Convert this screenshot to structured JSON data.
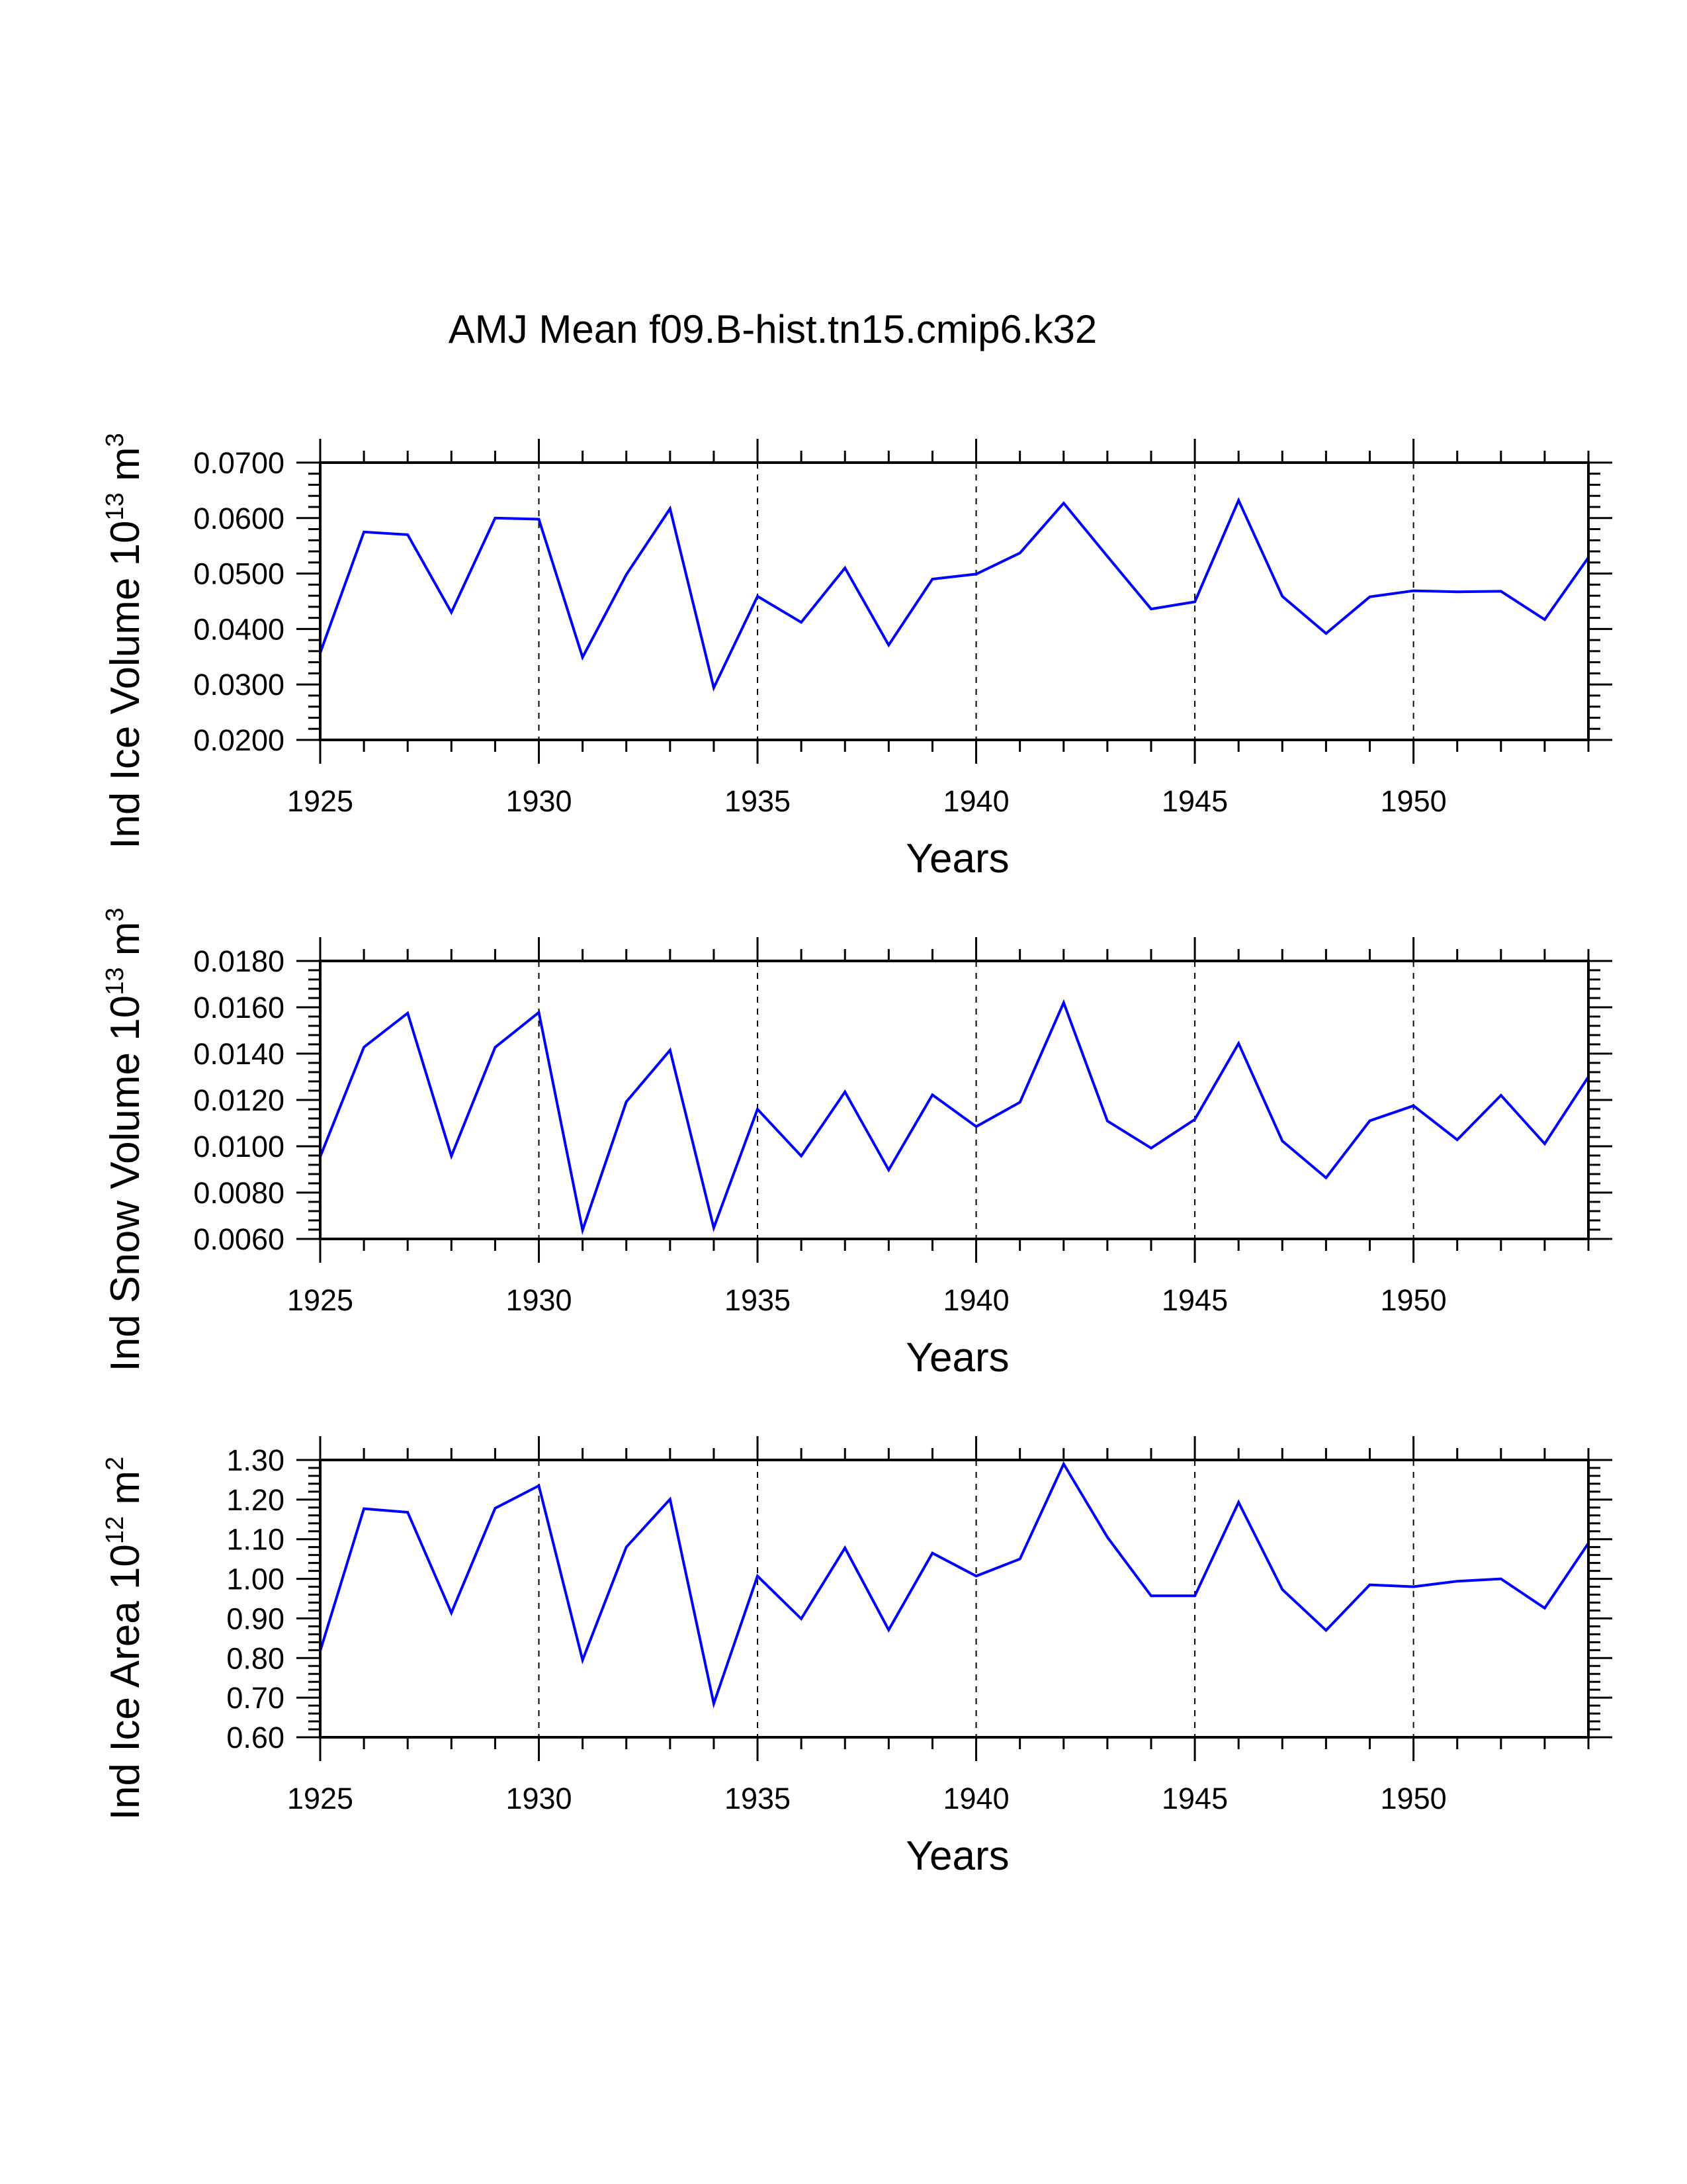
{
  "title": "AMJ Mean f09.B-hist.tn15.cmip6.k32",
  "colors": {
    "series": "#0000ff",
    "axis": "#000000",
    "background": "#ffffff"
  },
  "chart_data": [
    {
      "type": "line",
      "ylabel": "Ind Ice Volume 10^13 m^3",
      "ylabel_parts": {
        "base": "Ind Ice Volume 10",
        "exp1": "13",
        "unit": " m",
        "exp2": "3"
      },
      "xlabel": "Years",
      "xlim": [
        1925,
        1954
      ],
      "ylim": [
        0.02,
        0.07
      ],
      "xticks": [
        1925,
        1930,
        1935,
        1940,
        1945,
        1950
      ],
      "xtick_labels": [
        "1925",
        "1930",
        "1935",
        "1940",
        "1945",
        "1950"
      ],
      "yticks": [
        0.02,
        0.03,
        0.04,
        0.05,
        0.06,
        0.07
      ],
      "ytick_labels": [
        "0.0200",
        "0.0300",
        "0.0400",
        "0.0500",
        "0.0600",
        "0.0700"
      ],
      "grid": "dashed vertical at x ticks",
      "x": [
        1925,
        1926,
        1927,
        1928,
        1929,
        1930,
        1931,
        1932,
        1933,
        1934,
        1935,
        1936,
        1937,
        1938,
        1939,
        1940,
        1941,
        1942,
        1943,
        1944,
        1945,
        1946,
        1947,
        1948,
        1949,
        1950,
        1951,
        1952,
        1953,
        1954
      ],
      "values": [
        0.0357,
        0.0575,
        0.057,
        0.043,
        0.06,
        0.0598,
        0.0349,
        0.0498,
        0.0617,
        0.0294,
        0.0459,
        0.0412,
        0.051,
        0.0371,
        0.049,
        0.0499,
        0.0537,
        0.0627,
        0.0531,
        0.0436,
        0.0449,
        0.0632,
        0.0459,
        0.0392,
        0.0458,
        0.0469,
        0.0467,
        0.0468,
        0.0417,
        0.0529
      ]
    },
    {
      "type": "line",
      "ylabel": "Ind Snow Volume 10^13 m^3",
      "ylabel_parts": {
        "base": "Ind Snow Volume 10",
        "exp1": "13",
        "unit": " m",
        "exp2": "3"
      },
      "xlabel": "Years",
      "xlim": [
        1925,
        1954
      ],
      "ylim": [
        0.006,
        0.018
      ],
      "xticks": [
        1925,
        1930,
        1935,
        1940,
        1945,
        1950
      ],
      "xtick_labels": [
        "1925",
        "1930",
        "1935",
        "1940",
        "1945",
        "1950"
      ],
      "yticks": [
        0.006,
        0.008,
        0.01,
        0.012,
        0.014,
        0.016,
        0.018
      ],
      "ytick_labels": [
        "0.0060",
        "0.0080",
        "0.0100",
        "0.0120",
        "0.0140",
        "0.0160",
        "0.0180"
      ],
      "grid": "dashed vertical at x ticks",
      "x": [
        1925,
        1926,
        1927,
        1928,
        1929,
        1930,
        1931,
        1932,
        1933,
        1934,
        1935,
        1936,
        1937,
        1938,
        1939,
        1940,
        1941,
        1942,
        1943,
        1944,
        1945,
        1946,
        1947,
        1948,
        1949,
        1950,
        1951,
        1952,
        1953,
        1954
      ],
      "values": [
        0.00955,
        0.01428,
        0.01575,
        0.00958,
        0.01427,
        0.01578,
        0.00638,
        0.01192,
        0.01415,
        0.00648,
        0.0116,
        0.00958,
        0.01235,
        0.00898,
        0.01222,
        0.01085,
        0.0119,
        0.0162,
        0.01109,
        0.00992,
        0.01116,
        0.01444,
        0.01023,
        0.00864,
        0.0111,
        0.01175,
        0.01028,
        0.0122,
        0.01011,
        0.013
      ]
    },
    {
      "type": "line",
      "ylabel": "Ind Ice Area 10^12 m^2",
      "ylabel_parts": {
        "base": "Ind Ice Area 10",
        "exp1": "12",
        "unit": " m",
        "exp2": "2"
      },
      "xlabel": "Years",
      "xlim": [
        1925,
        1954
      ],
      "ylim": [
        0.6,
        1.3
      ],
      "xticks": [
        1925,
        1930,
        1935,
        1940,
        1945,
        1950
      ],
      "xtick_labels": [
        "1925",
        "1930",
        "1935",
        "1940",
        "1945",
        "1950"
      ],
      "yticks": [
        0.6,
        0.7,
        0.8,
        0.9,
        1.0,
        1.1,
        1.2,
        1.3
      ],
      "ytick_labels": [
        "0.60",
        "0.70",
        "0.80",
        "0.90",
        "1.00",
        "1.10",
        "1.20",
        "1.30"
      ],
      "grid": "dashed vertical at x ticks",
      "x": [
        1925,
        1926,
        1927,
        1928,
        1929,
        1930,
        1931,
        1932,
        1933,
        1934,
        1935,
        1936,
        1937,
        1938,
        1939,
        1940,
        1941,
        1942,
        1943,
        1944,
        1945,
        1946,
        1947,
        1948,
        1949,
        1950,
        1951,
        1952,
        1953,
        1954
      ],
      "values": [
        0.818,
        1.177,
        1.168,
        0.914,
        1.178,
        1.235,
        0.795,
        1.08,
        1.201,
        0.685,
        1.007,
        0.899,
        1.078,
        0.871,
        1.065,
        1.007,
        1.05,
        1.29,
        1.105,
        0.957,
        0.957,
        1.193,
        0.973,
        0.87,
        0.985,
        0.98,
        0.994,
        1.0,
        0.926,
        1.09
      ]
    }
  ]
}
